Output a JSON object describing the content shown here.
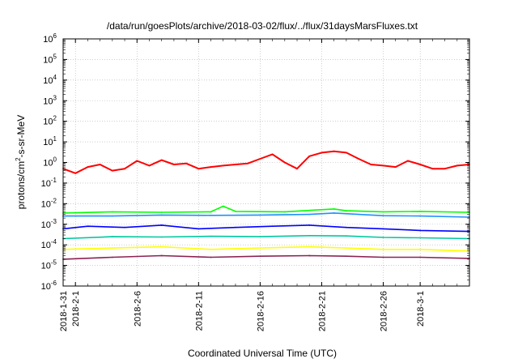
{
  "chart_data": {
    "type": "line",
    "title": "/data/run/goesPlots/archive/2018-03-02/flux/../flux/31daysMarsFluxes.txt",
    "xlabel": "Coordinated Universal Time (UTC)",
    "ylabel": {
      "prefix": "protons/cm",
      "sup": "2",
      "suffix": "-s-sr-MeV"
    },
    "yscale": "log",
    "ylim": [
      1e-06,
      1000000.0
    ],
    "grid": true,
    "xlim": [
      "2018-01-31",
      "2018-03-05"
    ],
    "x_ticks": [
      {
        "date": "2018-01-31",
        "label": "2018-1-31"
      },
      {
        "date": "2018-02-01",
        "label": "2018-2-1"
      },
      {
        "date": "2018-02-06",
        "label": "2018-2-6"
      },
      {
        "date": "2018-02-11",
        "label": "2018-2-11"
      },
      {
        "date": "2018-02-16",
        "label": "2018-2-16"
      },
      {
        "date": "2018-02-21",
        "label": "2018-2-21"
      },
      {
        "date": "2018-02-26",
        "label": "2018-2-26"
      },
      {
        "date": "2018-03-01",
        "label": "2018-3-1"
      }
    ],
    "y_ticks": [
      {
        "value": 1e-06,
        "base": "10",
        "exp": "-6"
      },
      {
        "value": 1e-05,
        "base": "10",
        "exp": "-5"
      },
      {
        "value": 0.0001,
        "base": "10",
        "exp": "-4"
      },
      {
        "value": 0.001,
        "base": "10",
        "exp": "-3"
      },
      {
        "value": 0.01,
        "base": "10",
        "exp": "-2"
      },
      {
        "value": 0.1,
        "base": "10",
        "exp": "-1"
      },
      {
        "value": 1,
        "base": "10",
        "exp": "0"
      },
      {
        "value": 10.0,
        "base": "10",
        "exp": "1"
      },
      {
        "value": 100.0,
        "base": "10",
        "exp": "2"
      },
      {
        "value": 1000.0,
        "base": "10",
        "exp": "3"
      },
      {
        "value": 10000.0,
        "base": "10",
        "exp": "4"
      },
      {
        "value": 100000.0,
        "base": "10",
        "exp": "5"
      },
      {
        "value": 1000000.0,
        "base": "10",
        "exp": "6"
      }
    ],
    "series": [
      {
        "color": "#ff0000",
        "values": [
          [
            "2018-01-31",
            0.5
          ],
          [
            "2018-02-01",
            0.3
          ],
          [
            "2018-02-02",
            0.6
          ],
          [
            "2018-02-03",
            0.8
          ],
          [
            "2018-02-04",
            0.4
          ],
          [
            "2018-02-05",
            0.5
          ],
          [
            "2018-02-06",
            1.2
          ],
          [
            "2018-02-07",
            0.7
          ],
          [
            "2018-02-08",
            1.3
          ],
          [
            "2018-02-09",
            0.8
          ],
          [
            "2018-02-10",
            0.9
          ],
          [
            "2018-02-11",
            0.5
          ],
          [
            "2018-02-12",
            0.6
          ],
          [
            "2018-02-13",
            0.7
          ],
          [
            "2018-02-14",
            0.8
          ],
          [
            "2018-02-15",
            0.9
          ],
          [
            "2018-02-16",
            1.5
          ],
          [
            "2018-02-17",
            2.5
          ],
          [
            "2018-02-18",
            1.0
          ],
          [
            "2018-02-19",
            0.5
          ],
          [
            "2018-02-20",
            2.0
          ],
          [
            "2018-02-21",
            3.0
          ],
          [
            "2018-02-22",
            3.5
          ],
          [
            "2018-02-23",
            3.0
          ],
          [
            "2018-02-24",
            1.5
          ],
          [
            "2018-02-25",
            0.8
          ],
          [
            "2018-02-26",
            0.7
          ],
          [
            "2018-02-27",
            0.6
          ],
          [
            "2018-02-28",
            1.2
          ],
          [
            "2018-03-01",
            0.8
          ],
          [
            "2018-03-02",
            0.5
          ],
          [
            "2018-03-03",
            0.5
          ],
          [
            "2018-03-04",
            0.7
          ],
          [
            "2018-03-05",
            0.8
          ]
        ]
      },
      {
        "color": "#00ff00",
        "values": [
          [
            "2018-01-31",
            0.0035
          ],
          [
            "2018-02-04",
            0.004
          ],
          [
            "2018-02-08",
            0.0038
          ],
          [
            "2018-02-12",
            0.004
          ],
          [
            "2018-02-13",
            0.0075
          ],
          [
            "2018-02-14",
            0.0042
          ],
          [
            "2018-02-18",
            0.004
          ],
          [
            "2018-02-22",
            0.0055
          ],
          [
            "2018-02-23",
            0.0045
          ],
          [
            "2018-02-26",
            0.004
          ],
          [
            "2018-03-01",
            0.0042
          ],
          [
            "2018-03-05",
            0.0038
          ]
        ]
      },
      {
        "color": "#1e90ff",
        "values": [
          [
            "2018-01-31",
            0.0025
          ],
          [
            "2018-02-04",
            0.0025
          ],
          [
            "2018-02-08",
            0.0028
          ],
          [
            "2018-02-12",
            0.0027
          ],
          [
            "2018-02-16",
            0.0028
          ],
          [
            "2018-02-20",
            0.003
          ],
          [
            "2018-02-22",
            0.0035
          ],
          [
            "2018-02-26",
            0.0026
          ],
          [
            "2018-03-01",
            0.0025
          ],
          [
            "2018-03-05",
            0.0022
          ]
        ]
      },
      {
        "color": "#0000ff",
        "values": [
          [
            "2018-01-31",
            0.0006
          ],
          [
            "2018-02-02",
            0.0008
          ],
          [
            "2018-02-05",
            0.0007
          ],
          [
            "2018-02-08",
            0.0009
          ],
          [
            "2018-02-11",
            0.0006
          ],
          [
            "2018-02-14",
            0.0007
          ],
          [
            "2018-02-17",
            0.0008
          ],
          [
            "2018-02-20",
            0.0009
          ],
          [
            "2018-02-23",
            0.0007
          ],
          [
            "2018-02-26",
            0.0006
          ],
          [
            "2018-03-01",
            0.0005
          ],
          [
            "2018-03-05",
            0.00045
          ]
        ]
      },
      {
        "color": "#00c8a0",
        "values": [
          [
            "2018-01-31",
            0.0002
          ],
          [
            "2018-02-04",
            0.00025
          ],
          [
            "2018-02-08",
            0.00024
          ],
          [
            "2018-02-12",
            0.00026
          ],
          [
            "2018-02-16",
            0.00025
          ],
          [
            "2018-02-20",
            0.00028
          ],
          [
            "2018-02-23",
            0.00027
          ],
          [
            "2018-02-26",
            0.00023
          ],
          [
            "2018-03-01",
            0.00022
          ],
          [
            "2018-03-05",
            0.0002
          ]
        ]
      },
      {
        "color": "#ffff00",
        "values": [
          [
            "2018-01-31",
            6e-05
          ],
          [
            "2018-02-04",
            7e-05
          ],
          [
            "2018-02-08",
            8e-05
          ],
          [
            "2018-02-12",
            6e-05
          ],
          [
            "2018-02-16",
            7e-05
          ],
          [
            "2018-02-20",
            8e-05
          ],
          [
            "2018-02-23",
            7e-05
          ],
          [
            "2018-02-26",
            6e-05
          ],
          [
            "2018-03-01",
            6e-05
          ],
          [
            "2018-03-05",
            5e-05
          ]
        ]
      },
      {
        "color": "#8b2252",
        "values": [
          [
            "2018-01-31",
            2e-05
          ],
          [
            "2018-02-04",
            2.5e-05
          ],
          [
            "2018-02-08",
            3e-05
          ],
          [
            "2018-02-12",
            2.5e-05
          ],
          [
            "2018-02-16",
            2.8e-05
          ],
          [
            "2018-02-20",
            3e-05
          ],
          [
            "2018-02-23",
            2.8e-05
          ],
          [
            "2018-02-26",
            2.5e-05
          ],
          [
            "2018-03-01",
            2.5e-05
          ],
          [
            "2018-03-05",
            2.2e-05
          ]
        ]
      }
    ]
  }
}
